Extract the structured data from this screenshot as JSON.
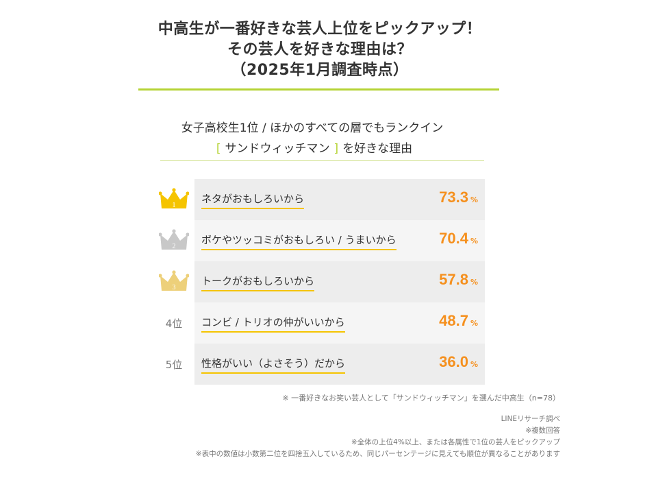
{
  "title": {
    "line1": "中高生が一番好きな芸人上位をピックアップ！",
    "line2": "その芸人を好きな理由は？",
    "line3": "（2025年1月調査時点）"
  },
  "subtitle": {
    "line1": "女子高校生1位 / ほかのすべての層でもランクイン",
    "bracket_open": "[",
    "comedian": "サンドウィッチマン",
    "bracket_close": "]",
    "suffix": "を好きな理由"
  },
  "colors": {
    "accent_green": "#b5d335",
    "percent_orange": "#f5901e",
    "underline_yellow": "#f5c400",
    "crown_gold": "#f5c400",
    "crown_silver": "#c8c8c8",
    "crown_bronze": "#edd07a"
  },
  "chart_data": {
    "type": "table",
    "unit": "%",
    "rows": [
      {
        "rank": 1,
        "rank_label": "1",
        "rank_icon": "crown-gold-icon",
        "label": "ネタがおもしろいから",
        "value": 73.3,
        "value_text": "73.3"
      },
      {
        "rank": 2,
        "rank_label": "2",
        "rank_icon": "crown-silver-icon",
        "label": "ボケやツッコミがおもしろい / うまいから",
        "value": 70.4,
        "value_text": "70.4"
      },
      {
        "rank": 3,
        "rank_label": "3",
        "rank_icon": "crown-bronze-icon",
        "label": "トークがおもしろいから",
        "value": 57.8,
        "value_text": "57.8"
      },
      {
        "rank": 4,
        "rank_label": "4位",
        "label": "コンビ / トリオの仲がいいから",
        "value": 48.7,
        "value_text": "48.7"
      },
      {
        "rank": 5,
        "rank_label": "5位",
        "label": "性格がいい（よさそう）だから",
        "value": 36.0,
        "value_text": "36.0"
      }
    ]
  },
  "notes": {
    "sample": "※ 一番好きなお笑い芸人として「サンドウィッチマン」を選んだ中高生（n=78）",
    "source": "LINEリサーチ調べ",
    "multiple": "※複数回答",
    "selection": "※全体の上位4%以上、または各属性で1位の芸人をピックアップ",
    "rounding": "※表中の数値は小数第二位を四捨五入しているため、同じパーセンテージに見えても順位が異なることがあります"
  }
}
